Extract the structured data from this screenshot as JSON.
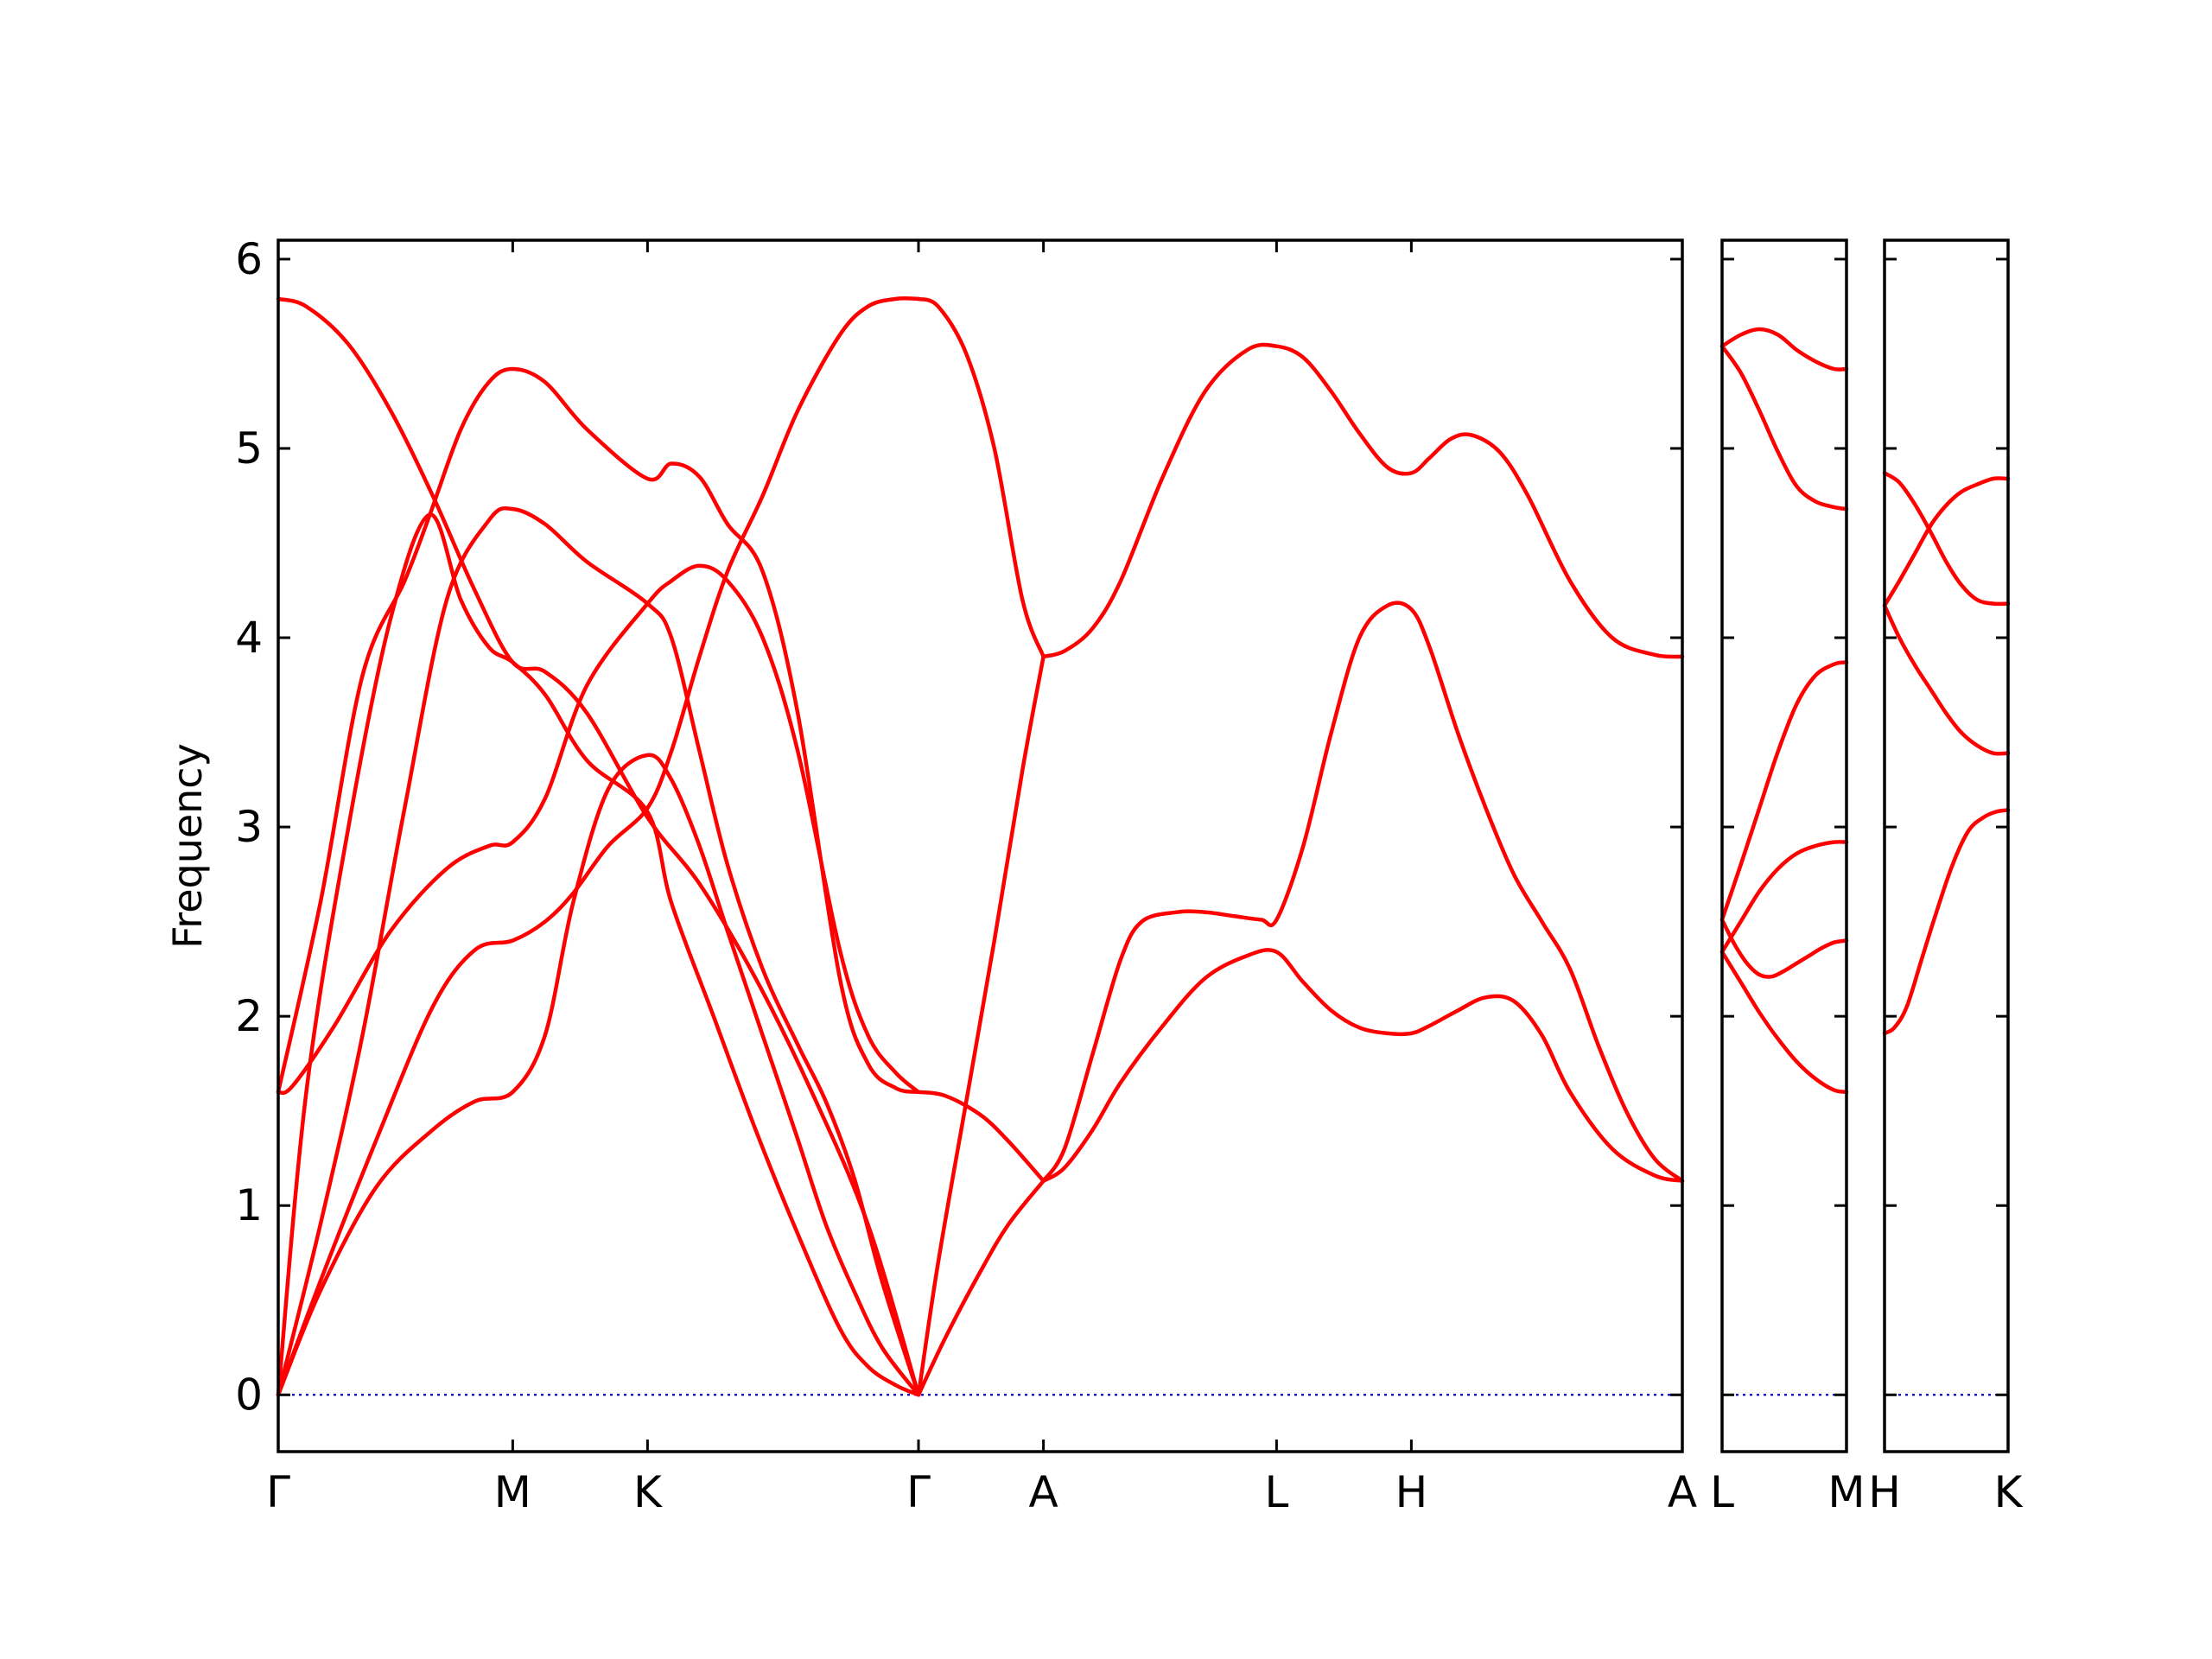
{
  "chart_data": {
    "type": "line",
    "ylabel": "Frequency",
    "ylim": [
      -0.3,
      6.1
    ],
    "yticks": [
      0,
      1,
      2,
      3,
      4,
      5,
      6
    ],
    "band_color": "#ff0000",
    "zero_line_color": "#0000cc",
    "grid": false,
    "panels": [
      {
        "id": "p1",
        "xlim": [
          0,
          1
        ],
        "labels": [
          {
            "label": "Γ",
            "x": 0.0
          },
          {
            "label": "M",
            "x": 0.167
          },
          {
            "label": "K",
            "x": 0.263
          },
          {
            "label": "Γ",
            "x": 0.456
          },
          {
            "label": "A",
            "x": 0.545
          },
          {
            "label": "L",
            "x": 0.711
          },
          {
            "label": "H",
            "x": 0.807
          },
          {
            "label": "A",
            "x": 1.0
          }
        ],
        "series": [
          {
            "x": [
              0,
              0.02,
              0.05,
              0.08,
              0.11,
              0.14,
              0.167,
              0.19,
              0.22,
              0.263,
              0.3,
              0.34,
              0.38,
              0.42,
              0.456
            ],
            "y": [
              5.79,
              5.75,
              5.55,
              5.2,
              4.75,
              4.25,
              3.87,
              3.82,
              3.6,
              3.05,
              2.7,
              2.2,
              1.6,
              0.9,
              0.0
            ]
          },
          {
            "x": [
              0,
              0.03,
              0.06,
              0.09,
              0.108,
              0.13,
              0.15,
              0.167,
              0.19,
              0.22,
              0.263,
              0.28,
              0.3,
              0.32,
              0.345,
              0.37,
              0.4,
              0.42,
              0.44,
              0.456
            ],
            "y": [
              1.6,
              2.6,
              3.8,
              4.3,
              4.65,
              5.1,
              5.35,
              5.42,
              5.35,
              5.1,
              4.84,
              4.92,
              4.85,
              4.6,
              4.35,
              3.6,
              2.2,
              1.75,
              1.62,
              1.6
            ]
          },
          {
            "x": [
              0,
              0.02,
              0.05,
              0.08,
              0.108,
              0.13,
              0.15,
              0.167,
              0.19,
              0.22,
              0.263,
              0.28,
              0.31,
              0.34,
              0.37,
              0.4,
              0.42,
              0.44,
              0.456
            ],
            "y": [
              0.0,
              1.6,
              3.0,
              4.1,
              4.65,
              4.2,
              3.95,
              3.87,
              3.7,
              3.35,
              3.08,
              2.6,
              2.0,
              1.4,
              0.85,
              0.35,
              0.15,
              0.05,
              0.0
            ]
          },
          {
            "x": [
              0,
              0.03,
              0.06,
              0.09,
              0.12,
              0.15,
              0.167,
              0.19,
              0.22,
              0.263,
              0.28,
              0.3,
              0.32,
              0.345,
              0.37,
              0.39,
              0.41,
              0.43,
              0.456
            ],
            "y": [
              0.0,
              0.9,
              1.9,
              3.1,
              4.2,
              4.62,
              4.68,
              4.6,
              4.4,
              4.18,
              4.0,
              3.4,
              2.8,
              2.25,
              1.85,
              1.55,
              1.15,
              0.6,
              0.0
            ]
          },
          {
            "x": [
              0,
              0.01,
              0.04,
              0.08,
              0.12,
              0.15,
              0.167,
              0.19,
              0.22,
              0.263,
              0.28,
              0.3,
              0.32,
              0.345,
              0.37,
              0.4,
              0.42,
              0.44,
              0.456
            ],
            "y": [
              1.6,
              1.63,
              1.95,
              2.45,
              2.78,
              2.9,
              2.92,
              3.15,
              3.75,
              4.18,
              4.3,
              4.38,
              4.3,
              4.0,
              3.4,
              2.35,
              1.9,
              1.7,
              1.6
            ]
          },
          {
            "x": [
              0,
              0.03,
              0.07,
              0.11,
              0.14,
              0.167,
              0.19,
              0.21,
              0.235,
              0.263,
              0.28,
              0.3,
              0.32,
              0.345,
              0.37,
              0.4,
              0.42,
              0.44,
              0.456
            ],
            "y": [
              0.0,
              0.6,
              1.35,
              2.05,
              2.35,
              2.4,
              2.5,
              2.65,
              2.9,
              3.1,
              3.4,
              3.9,
              4.35,
              4.75,
              5.2,
              5.6,
              5.75,
              5.79,
              5.79
            ]
          },
          {
            "x": [
              0,
              0.03,
              0.07,
              0.11,
              0.14,
              0.167,
              0.19,
              0.21,
              0.235,
              0.263,
              0.28,
              0.3,
              0.32,
              0.345,
              0.37,
              0.39,
              0.41,
              0.43,
              0.456
            ],
            "y": [
              0.0,
              0.55,
              1.1,
              1.4,
              1.55,
              1.6,
              1.9,
              2.6,
              3.2,
              3.38,
              3.25,
              2.9,
              2.45,
              1.9,
              1.35,
              0.9,
              0.55,
              0.25,
              0.0
            ]
          },
          {
            "x": [
              0.456,
              0.47,
              0.49,
              0.51,
              0.53,
              0.545
            ],
            "y": [
              5.79,
              5.75,
              5.5,
              5.0,
              4.2,
              3.9
            ]
          },
          {
            "x": [
              0.456,
              0.47,
              0.49,
              0.51,
              0.53,
              0.545
            ],
            "y": [
              0.0,
              0.7,
              1.55,
              2.4,
              3.3,
              3.9
            ]
          },
          {
            "x": [
              0.456,
              0.475,
              0.5,
              0.52,
              0.545
            ],
            "y": [
              1.6,
              1.58,
              1.48,
              1.34,
              1.13
            ]
          },
          {
            "x": [
              0.456,
              0.475,
              0.5,
              0.52,
              0.545
            ],
            "y": [
              0.0,
              0.3,
              0.65,
              0.9,
              1.13
            ]
          },
          {
            "x": [
              0.545,
              0.56,
              0.58,
              0.6,
              0.63,
              0.66,
              0.69,
              0.711,
              0.73,
              0.75,
              0.77,
              0.79,
              0.807,
              0.82,
              0.835,
              0.85,
              0.87,
              0.89,
              0.92,
              0.95,
              0.98,
              1.0
            ],
            "y": [
              3.9,
              3.93,
              4.05,
              4.3,
              4.85,
              5.3,
              5.52,
              5.54,
              5.48,
              5.3,
              5.08,
              4.9,
              4.87,
              4.95,
              5.05,
              5.07,
              4.98,
              4.75,
              4.3,
              4.0,
              3.91,
              3.9
            ]
          },
          {
            "x": [
              0.545,
              0.56,
              0.58,
              0.6,
              0.615,
              0.64,
              0.66,
              0.68,
              0.7,
              0.711,
              0.73,
              0.75,
              0.77,
              0.79,
              0.807,
              0.82,
              0.84,
              0.86,
              0.88,
              0.9,
              0.92,
              0.94,
              0.96,
              0.98,
              1.0
            ],
            "y": [
              1.13,
              1.3,
              1.8,
              2.3,
              2.5,
              2.55,
              2.55,
              2.53,
              2.51,
              2.51,
              2.9,
              3.5,
              4.0,
              4.17,
              4.15,
              3.95,
              3.5,
              3.1,
              2.75,
              2.5,
              2.25,
              1.85,
              1.5,
              1.25,
              1.13
            ]
          },
          {
            "x": [
              0.545,
              0.56,
              0.58,
              0.6,
              0.63,
              0.66,
              0.69,
              0.711,
              0.73,
              0.75,
              0.77,
              0.79,
              0.807,
              0.82,
              0.84,
              0.86,
              0.88,
              0.9,
              0.92,
              0.95,
              0.98,
              1.0
            ],
            "y": [
              1.13,
              1.2,
              1.4,
              1.65,
              1.95,
              2.2,
              2.32,
              2.34,
              2.18,
              2.03,
              1.94,
              1.91,
              1.91,
              1.95,
              2.03,
              2.1,
              2.08,
              1.9,
              1.6,
              1.3,
              1.16,
              1.13
            ]
          }
        ]
      },
      {
        "id": "p2",
        "xlim": [
          0,
          1
        ],
        "labels": [
          {
            "label": "L",
            "x": 0.0
          },
          {
            "label": "M",
            "x": 1.0
          }
        ],
        "series": [
          {
            "x": [
              0,
              0.15,
              0.3,
              0.45,
              0.6,
              0.75,
              0.9,
              1.0
            ],
            "y": [
              5.54,
              5.6,
              5.63,
              5.6,
              5.52,
              5.46,
              5.42,
              5.42
            ]
          },
          {
            "x": [
              0,
              0.15,
              0.3,
              0.45,
              0.6,
              0.75,
              0.9,
              1.0
            ],
            "y": [
              5.54,
              5.4,
              5.2,
              4.98,
              4.8,
              4.72,
              4.69,
              4.68
            ]
          },
          {
            "x": [
              0,
              0.15,
              0.3,
              0.45,
              0.6,
              0.75,
              0.9,
              1.0
            ],
            "y": [
              2.51,
              2.8,
              3.1,
              3.4,
              3.65,
              3.8,
              3.86,
              3.87
            ]
          },
          {
            "x": [
              0,
              0.15,
              0.3,
              0.45,
              0.6,
              0.75,
              0.9,
              1.0
            ],
            "y": [
              2.34,
              2.5,
              2.66,
              2.78,
              2.86,
              2.9,
              2.92,
              2.92
            ]
          },
          {
            "x": [
              0,
              0.1,
              0.2,
              0.3,
              0.4,
              0.5,
              0.6,
              0.7,
              0.8,
              0.9,
              1.0
            ],
            "y": [
              2.51,
              2.38,
              2.28,
              2.22,
              2.21,
              2.24,
              2.28,
              2.32,
              2.36,
              2.39,
              2.4
            ]
          },
          {
            "x": [
              0,
              0.15,
              0.3,
              0.45,
              0.6,
              0.75,
              0.9,
              1.0
            ],
            "y": [
              2.34,
              2.18,
              2.02,
              1.88,
              1.76,
              1.67,
              1.61,
              1.6
            ]
          }
        ]
      },
      {
        "id": "p3",
        "xlim": [
          0,
          1
        ],
        "labels": [
          {
            "label": "H",
            "x": 0.0
          },
          {
            "label": "K",
            "x": 1.0
          }
        ],
        "series": [
          {
            "x": [
              0,
              0.12,
              0.25,
              0.38,
              0.5,
              0.62,
              0.75,
              0.88,
              1.0
            ],
            "y": [
              4.87,
              4.82,
              4.7,
              4.55,
              4.4,
              4.28,
              4.2,
              4.18,
              4.18
            ]
          },
          {
            "x": [
              0,
              0.12,
              0.25,
              0.38,
              0.5,
              0.62,
              0.75,
              0.88,
              1.0
            ],
            "y": [
              4.17,
              4.3,
              4.45,
              4.6,
              4.7,
              4.77,
              4.81,
              4.84,
              4.84
            ]
          },
          {
            "x": [
              0,
              0.12,
              0.25,
              0.38,
              0.5,
              0.62,
              0.75,
              0.88,
              1.0
            ],
            "y": [
              4.17,
              4.0,
              3.85,
              3.72,
              3.6,
              3.5,
              3.43,
              3.39,
              3.39
            ]
          },
          {
            "x": [
              0,
              0.08,
              0.18,
              0.3,
              0.42,
              0.55,
              0.68,
              0.8,
              0.9,
              1.0
            ],
            "y": [
              1.91,
              1.94,
              2.05,
              2.3,
              2.55,
              2.8,
              2.98,
              3.05,
              3.08,
              3.09
            ]
          }
        ]
      }
    ]
  }
}
